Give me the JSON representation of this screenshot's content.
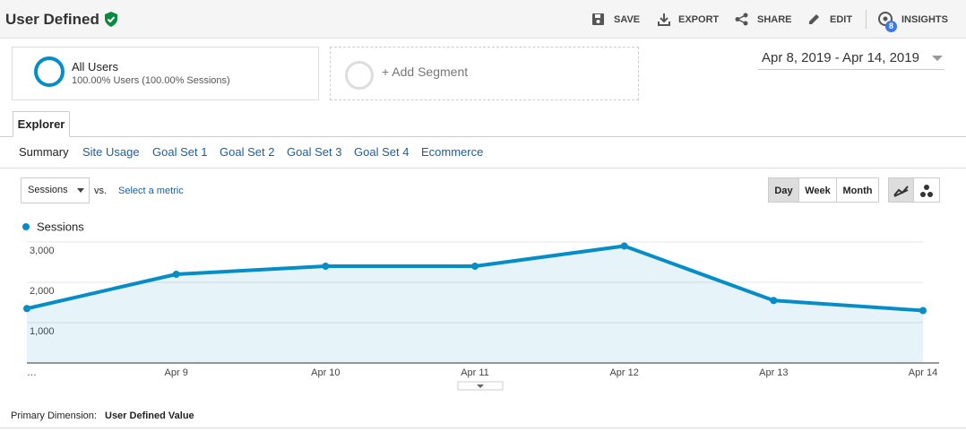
{
  "header": {
    "title": "User Defined",
    "actions": [
      "SAVE",
      "EXPORT",
      "SHARE",
      "EDIT",
      "INSIGHTS"
    ],
    "insights_badge": "8"
  },
  "segments": [
    {
      "name": "All Users",
      "detail": "100.00% Users (100.00% Sessions)"
    }
  ],
  "add_segment": "+ Add Segment",
  "date_range": "Apr 8, 2019 - Apr 14, 2019",
  "tab": "Explorer",
  "subtabs": [
    "Summary",
    "Site Usage",
    "Goal Set 1",
    "Goal Set 2",
    "Goal Set 3",
    "Goal Set 4",
    "Ecommerce"
  ],
  "metric_select": "Sessions",
  "vs": "vs.",
  "select_metric": "Select a metric",
  "granularity": [
    "Day",
    "Week",
    "Month"
  ],
  "chart_data": {
    "type": "area",
    "categories": [
      "…",
      "Apr 9",
      "Apr 10",
      "Apr 11",
      "Apr 12",
      "Apr 13",
      "Apr 14"
    ],
    "series": [
      {
        "name": "Sessions",
        "color": "#058dc7",
        "values": [
          1350,
          2200,
          2400,
          2400,
          2900,
          1550,
          1300
        ]
      }
    ],
    "ylim": [
      0,
      3000
    ],
    "yticks": [
      {
        "value": 1000,
        "label": "1,000"
      },
      {
        "value": 2000,
        "label": "2,000"
      },
      {
        "value": 3000,
        "label": "3,000"
      }
    ],
    "grid": true
  },
  "primary_dimension": {
    "label": "Primary Dimension:",
    "value": "User Defined Value"
  }
}
